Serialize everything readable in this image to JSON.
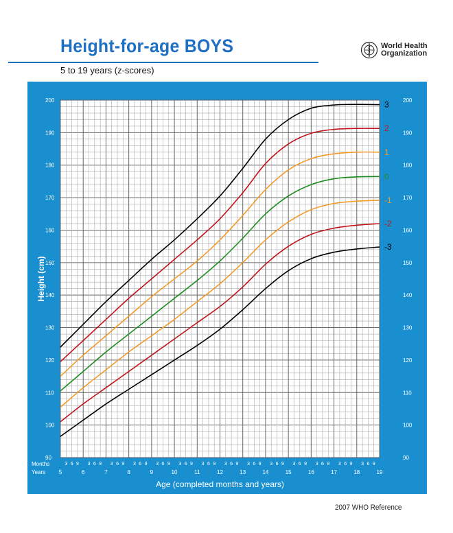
{
  "header": {
    "title": "Height-for-age  BOYS",
    "subtitle": "5 to 19 years (z-scores)",
    "org_line1": "World Health",
    "org_line2": "Organization",
    "footer": "2007 WHO Reference"
  },
  "colors": {
    "brand": "#1f6fc2",
    "panel": "#1a8fd0",
    "z3": "#000000",
    "z2": "#c0141a",
    "z1": "#f39a2b",
    "z0": "#1e8c1e"
  },
  "chart_data": {
    "type": "line",
    "ylabel": "Height (cm)",
    "xlabel": "Age (completed months and years)",
    "row_label_months": "Months",
    "row_label_years": "Years",
    "month_ticks": [
      "3",
      "6",
      "9"
    ],
    "xlim": [
      5,
      19
    ],
    "ylim": [
      90,
      200
    ],
    "y_ticks": [
      90,
      100,
      110,
      120,
      130,
      140,
      150,
      160,
      170,
      180,
      190,
      200
    ],
    "x_ticks": [
      5,
      6,
      7,
      8,
      9,
      10,
      11,
      12,
      13,
      14,
      15,
      16,
      17,
      18,
      19
    ],
    "grid": true,
    "x": [
      5,
      6,
      7,
      8,
      9,
      10,
      11,
      12,
      13,
      14,
      15,
      16,
      17,
      18,
      19
    ],
    "series": [
      {
        "name": "3",
        "color": "#000000",
        "values": [
          124,
          131,
          138,
          144.5,
          151,
          157,
          163.5,
          170.5,
          179,
          188,
          194,
          197.5,
          198.5,
          198.7,
          198.6
        ]
      },
      {
        "name": "2",
        "color": "#c0141a",
        "values": [
          119.5,
          126,
          132.5,
          139,
          145,
          151,
          157,
          163.5,
          171.5,
          180.5,
          186.5,
          189.8,
          191,
          191.3,
          191.3
        ]
      },
      {
        "name": "1",
        "color": "#f39a2b",
        "values": [
          115,
          121.5,
          127.5,
          133.5,
          139.5,
          145,
          150.5,
          157,
          164.5,
          172.5,
          178.5,
          182,
          183.5,
          184,
          184
        ]
      },
      {
        "name": "0",
        "color": "#1e8c1e",
        "values": [
          110.5,
          116.5,
          122.5,
          128,
          133.5,
          139,
          144.5,
          150.5,
          157.5,
          165,
          170.5,
          174,
          175.8,
          176.4,
          176.5
        ]
      },
      {
        "name": "-1",
        "color": "#f39a2b",
        "values": [
          105.5,
          111.5,
          117,
          122.5,
          127.5,
          132.5,
          138,
          143.5,
          150,
          157,
          162.5,
          166.3,
          168.2,
          168.9,
          169.2
        ]
      },
      {
        "name": "-2",
        "color": "#c0141a",
        "values": [
          101,
          106.5,
          111.5,
          116.5,
          121.5,
          126.5,
          131.5,
          136.5,
          142.5,
          149.5,
          155,
          158.7,
          160.6,
          161.5,
          162
        ]
      },
      {
        "name": "-3",
        "color": "#000000",
        "values": [
          96.5,
          101.5,
          106.5,
          111,
          115.5,
          120,
          124.5,
          129.5,
          135.5,
          142,
          147.5,
          151.2,
          153.2,
          154.2,
          154.8
        ]
      }
    ]
  }
}
